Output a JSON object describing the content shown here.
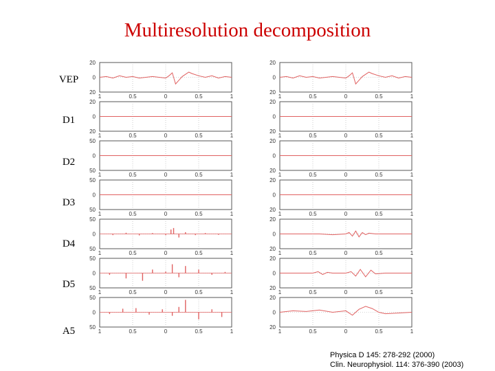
{
  "title": "Multiresolution decomposition",
  "citations": [
    "Physica D 145: 278-292 (2000)",
    "Clin. Neurophysiol. 114: 376-390 (2003)"
  ],
  "colors": {
    "title": "#cc0000",
    "trace": "#e06060",
    "grid": "#aaaaaa"
  },
  "chart_data": {
    "type": "line",
    "x_ticks": [
      "1",
      "0.5",
      "0",
      "0.5",
      "1"
    ],
    "xlim": [
      -1,
      1
    ],
    "columns": [
      {
        "rows": [
          {
            "label": "VEP",
            "y_ticks": [
              "20",
              "0",
              "20"
            ],
            "ylim": [
              -20,
              20
            ],
            "style": "line",
            "x": [
              -1,
              -0.9,
              -0.8,
              -0.7,
              -0.6,
              -0.5,
              -0.4,
              -0.3,
              -0.2,
              -0.1,
              0,
              0.05,
              0.1,
              0.15,
              0.2,
              0.25,
              0.3,
              0.35,
              0.4,
              0.5,
              0.6,
              0.7,
              0.8,
              0.9,
              1
            ],
            "y": [
              0,
              1,
              -1,
              2,
              0,
              1,
              -1,
              0,
              1,
              0,
              -1,
              2,
              6,
              -9,
              -4,
              1,
              4,
              7,
              5,
              2,
              0,
              2,
              -1,
              1,
              0
            ]
          },
          {
            "label": "D1",
            "y_ticks": [
              "20",
              "0",
              "20"
            ],
            "ylim": [
              -20,
              20
            ],
            "style": "line",
            "x": [
              -1,
              -0.5,
              0,
              0.5,
              1
            ],
            "y": [
              0,
              0,
              0,
              0,
              0
            ]
          },
          {
            "label": "D2",
            "y_ticks": [
              "50",
              "0",
              "50"
            ],
            "ylim": [
              -50,
              50
            ],
            "style": "line",
            "x": [
              -1,
              -0.5,
              0,
              0.5,
              1
            ],
            "y": [
              0,
              0,
              0,
              0,
              0
            ]
          },
          {
            "label": "D3",
            "y_ticks": [
              "50",
              "0",
              "50"
            ],
            "ylim": [
              -50,
              50
            ],
            "style": "line",
            "x": [
              -1,
              -0.5,
              0,
              0.5,
              1
            ],
            "y": [
              0,
              0,
              0,
              0,
              0
            ]
          },
          {
            "label": "D4",
            "y_ticks": [
              "50",
              "0",
              "50"
            ],
            "ylim": [
              -50,
              50
            ],
            "style": "stem",
            "x": [
              -0.8,
              -0.6,
              -0.4,
              -0.2,
              0,
              0.08,
              0.12,
              0.2,
              0.3,
              0.45,
              0.6,
              0.8
            ],
            "y": [
              -4,
              4,
              -5,
              3,
              -4,
              15,
              20,
              -12,
              6,
              -4,
              3,
              -3
            ]
          },
          {
            "label": "D5",
            "y_ticks": [
              "50",
              "0",
              "50"
            ],
            "ylim": [
              -50,
              50
            ],
            "style": "stem",
            "x": [
              -0.85,
              -0.6,
              -0.35,
              -0.2,
              0,
              0.1,
              0.2,
              0.3,
              0.5,
              0.7,
              0.9
            ],
            "y": [
              -6,
              -18,
              -26,
              12,
              5,
              30,
              -14,
              24,
              12,
              -6,
              4
            ]
          },
          {
            "label": "A5",
            "y_ticks": [
              "50",
              "0",
              "50"
            ],
            "ylim": [
              -50,
              50
            ],
            "style": "stem",
            "x": [
              -0.85,
              -0.65,
              -0.45,
              -0.25,
              -0.05,
              0.1,
              0.2,
              0.3,
              0.5,
              0.7,
              0.85
            ],
            "y": [
              -6,
              12,
              14,
              -8,
              10,
              -12,
              18,
              42,
              -24,
              10,
              -16
            ]
          }
        ]
      },
      {
        "rows": [
          {
            "label": "VEP",
            "y_ticks": [
              "20",
              "0",
              "20"
            ],
            "ylim": [
              -20,
              20
            ],
            "style": "line",
            "x": [
              -1,
              -0.9,
              -0.8,
              -0.7,
              -0.6,
              -0.5,
              -0.4,
              -0.3,
              -0.2,
              -0.1,
              0,
              0.05,
              0.1,
              0.15,
              0.2,
              0.25,
              0.3,
              0.35,
              0.4,
              0.5,
              0.6,
              0.7,
              0.8,
              0.9,
              1
            ],
            "y": [
              0,
              1,
              -1,
              2,
              0,
              1,
              -1,
              0,
              1,
              0,
              -1,
              2,
              6,
              -9,
              -4,
              1,
              4,
              7,
              5,
              2,
              0,
              2,
              -1,
              1,
              0
            ]
          },
          {
            "label": "D1",
            "y_ticks": [
              "20",
              "0",
              "20"
            ],
            "ylim": [
              -20,
              20
            ],
            "style": "line",
            "x": [
              -1,
              -0.5,
              0,
              0.5,
              1
            ],
            "y": [
              0,
              0,
              0,
              0,
              0
            ]
          },
          {
            "label": "D2",
            "y_ticks": [
              "20",
              "0",
              "20"
            ],
            "ylim": [
              -20,
              20
            ],
            "style": "line",
            "x": [
              -1,
              -0.5,
              0,
              0.5,
              1
            ],
            "y": [
              0,
              0,
              0,
              0,
              0
            ]
          },
          {
            "label": "D3",
            "y_ticks": [
              "20",
              "0",
              "20"
            ],
            "ylim": [
              -20,
              20
            ],
            "style": "line",
            "x": [
              -1,
              -0.5,
              0,
              0.5,
              1
            ],
            "y": [
              0,
              0,
              0,
              0,
              0
            ]
          },
          {
            "label": "D4",
            "y_ticks": [
              "20",
              "0",
              "20"
            ],
            "ylim": [
              -20,
              20
            ],
            "style": "line",
            "x": [
              -1,
              -0.4,
              -0.2,
              0,
              0.05,
              0.1,
              0.15,
              0.2,
              0.25,
              0.3,
              0.35,
              0.45,
              0.6,
              1
            ],
            "y": [
              0,
              0,
              -1,
              0,
              2,
              -3,
              4,
              -4,
              2,
              -1,
              1,
              0,
              0,
              0
            ]
          },
          {
            "label": "D5",
            "y_ticks": [
              "20",
              "0",
              "20"
            ],
            "ylim": [
              -20,
              20
            ],
            "style": "line",
            "x": [
              -1,
              -0.5,
              -0.42,
              -0.35,
              -0.28,
              -0.2,
              0,
              0.08,
              0.15,
              0.22,
              0.3,
              0.38,
              0.45,
              0.6,
              1
            ],
            "y": [
              0,
              0,
              2,
              -2,
              1,
              0,
              0,
              2,
              -4,
              5,
              -5,
              4,
              -1,
              0,
              0
            ]
          },
          {
            "label": "A5",
            "y_ticks": [
              "20",
              "0",
              "20"
            ],
            "ylim": [
              -20,
              20
            ],
            "style": "line",
            "x": [
              -1,
              -0.8,
              -0.6,
              -0.4,
              -0.2,
              0,
              0.1,
              0.2,
              0.3,
              0.4,
              0.5,
              0.6,
              0.8,
              1
            ],
            "y": [
              0,
              2,
              1,
              3,
              0,
              2,
              -4,
              4,
              8,
              5,
              0,
              -2,
              -1,
              0
            ]
          }
        ]
      }
    ]
  }
}
